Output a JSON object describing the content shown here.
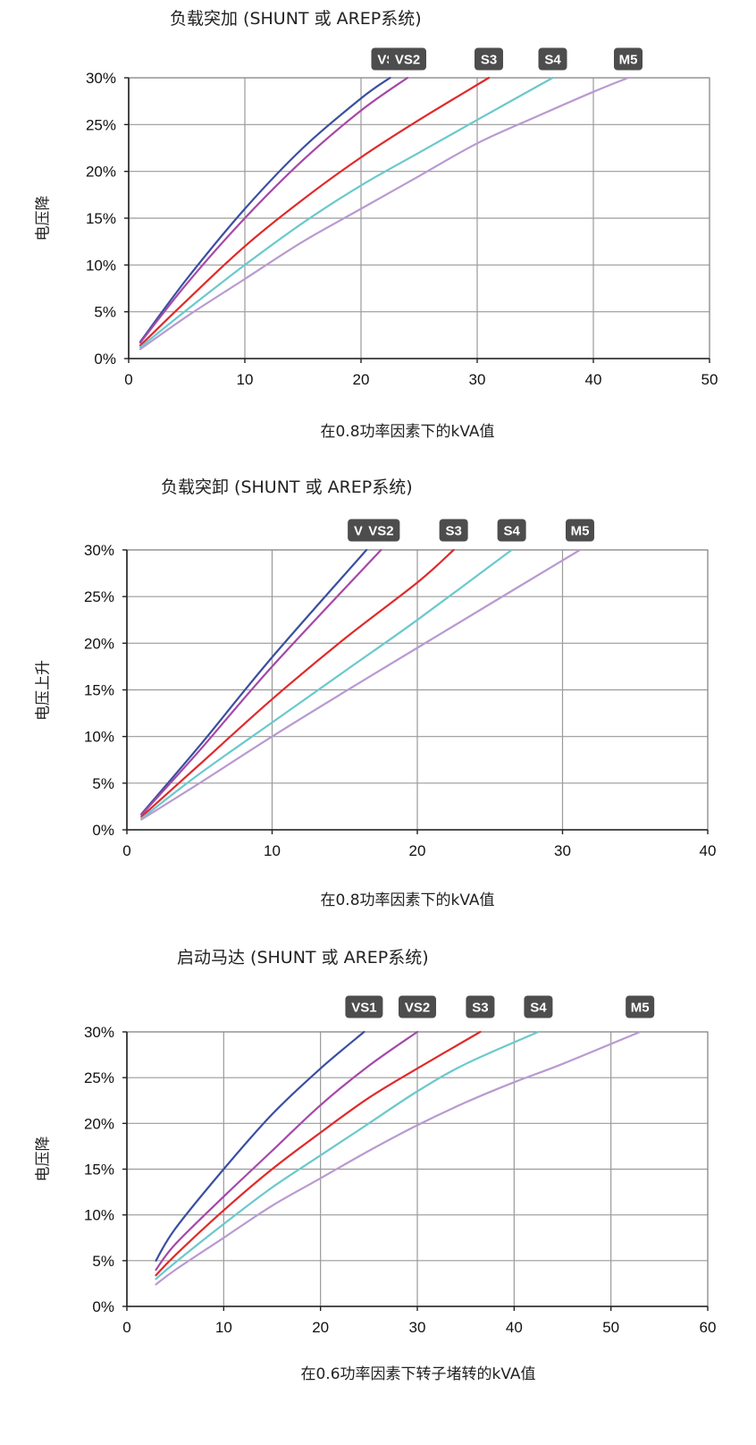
{
  "chart_data": [
    {
      "type": "line",
      "title": "负载突加 (SHUNT 或 AREP系统)",
      "xlabel": "在0.8功率因素下的kVA值",
      "ylabel": "电压降",
      "xlim": [
        0,
        50
      ],
      "ylim": [
        0,
        30
      ],
      "xticks": [
        "0",
        "10",
        "20",
        "30",
        "40",
        "50"
      ],
      "yticks": [
        "0%",
        "5%",
        "10%",
        "15%",
        "20%",
        "25%",
        "30%"
      ],
      "grid": true,
      "series": [
        {
          "name": "VS1",
          "color": "#3a4fa0",
          "x": [
            1,
            5,
            10,
            15,
            20,
            22.5
          ],
          "y": [
            1.8,
            8.5,
            16.0,
            22.5,
            27.8,
            30
          ]
        },
        {
          "name": "VS2",
          "color": "#a648a8",
          "x": [
            1,
            5,
            10,
            15,
            20,
            24
          ],
          "y": [
            1.7,
            8.0,
            15.0,
            21.2,
            26.5,
            30
          ]
        },
        {
          "name": "S3",
          "color": "#e02a2a",
          "x": [
            1,
            5,
            10,
            15,
            20,
            25,
            31
          ],
          "y": [
            1.4,
            6.2,
            12.0,
            17.0,
            21.5,
            25.5,
            30
          ]
        },
        {
          "name": "S4",
          "color": "#6ac9cc",
          "x": [
            1,
            5,
            10,
            15,
            20,
            25,
            30,
            36.5
          ],
          "y": [
            1.2,
            5.2,
            10.0,
            14.5,
            18.5,
            22.0,
            25.5,
            30
          ]
        },
        {
          "name": "M5",
          "color": "#b99ad0",
          "x": [
            1,
            5,
            10,
            15,
            20,
            25,
            30,
            35,
            40,
            43
          ],
          "y": [
            1.0,
            4.5,
            8.5,
            12.5,
            16.0,
            19.5,
            23.0,
            25.8,
            28.5,
            30
          ]
        }
      ],
      "tags": [
        "VS1",
        "VS2",
        "S3",
        "S4",
        "M5"
      ]
    },
    {
      "type": "line",
      "title": "负载突卸 (SHUNT 或 AREP系统)",
      "xlabel": "在0.8功率因素下的kVA值",
      "ylabel": "电压上升",
      "xlim": [
        0,
        40
      ],
      "ylim": [
        0,
        30
      ],
      "xticks": [
        "0",
        "10",
        "20",
        "30",
        "40"
      ],
      "yticks": [
        "0%",
        "5%",
        "10%",
        "15%",
        "20%",
        "25%",
        "30%"
      ],
      "grid": true,
      "series": [
        {
          "name": "VS1",
          "color": "#3a4fa0",
          "x": [
            1,
            5,
            10,
            16.5
          ],
          "y": [
            1.7,
            9.0,
            18.5,
            30
          ]
        },
        {
          "name": "VS2",
          "color": "#a648a8",
          "x": [
            1,
            5,
            10,
            17.5
          ],
          "y": [
            1.6,
            8.5,
            17.5,
            30
          ]
        },
        {
          "name": "S3",
          "color": "#e02a2a",
          "x": [
            1,
            5,
            10,
            15,
            20,
            22.5
          ],
          "y": [
            1.4,
            7.0,
            14.0,
            20.5,
            26.5,
            30
          ]
        },
        {
          "name": "S4",
          "color": "#6ac9cc",
          "x": [
            1,
            5,
            10,
            15,
            20,
            26.5
          ],
          "y": [
            1.2,
            6.0,
            11.5,
            17.0,
            22.5,
            30
          ]
        },
        {
          "name": "M5",
          "color": "#b99ad0",
          "x": [
            1,
            5,
            10,
            15,
            20,
            25,
            31.2
          ],
          "y": [
            1.1,
            5.0,
            10.0,
            14.8,
            19.5,
            24.2,
            30
          ]
        }
      ],
      "tags": [
        "VS1",
        "VS2",
        "S3",
        "S4",
        "M5"
      ]
    },
    {
      "type": "line",
      "title": "启动马达 (SHUNT 或 AREP系统)",
      "xlabel": "在0.6功率因素下转子堵转的kVA值",
      "ylabel": "电压降",
      "xlim": [
        0,
        60
      ],
      "ylim": [
        0,
        30
      ],
      "xticks": [
        "0",
        "10",
        "20",
        "30",
        "40",
        "50",
        "60"
      ],
      "yticks": [
        "0%",
        "5%",
        "10%",
        "15%",
        "20%",
        "25%",
        "30%"
      ],
      "grid": true,
      "series": [
        {
          "name": "VS1",
          "color": "#3a4fa0",
          "x": [
            3,
            5,
            10,
            15,
            20,
            24.5
          ],
          "y": [
            5.0,
            8.5,
            15.0,
            21.0,
            26.0,
            30
          ]
        },
        {
          "name": "VS2",
          "color": "#a648a8",
          "x": [
            3,
            5,
            10,
            15,
            20,
            25,
            30
          ],
          "y": [
            4.0,
            6.8,
            12.0,
            17.0,
            22.0,
            26.3,
            30
          ]
        },
        {
          "name": "S3",
          "color": "#e02a2a",
          "x": [
            3,
            5,
            10,
            15,
            20,
            25,
            30,
            36.5
          ],
          "y": [
            3.4,
            5.6,
            10.5,
            15.0,
            19.0,
            22.8,
            26.0,
            30
          ]
        },
        {
          "name": "S4",
          "color": "#6ac9cc",
          "x": [
            3,
            5,
            10,
            15,
            20,
            25,
            30,
            35,
            42.5
          ],
          "y": [
            3.0,
            4.8,
            9.0,
            13.0,
            16.5,
            20.0,
            23.5,
            26.5,
            30
          ]
        },
        {
          "name": "M5",
          "color": "#b99ad0",
          "x": [
            3,
            5,
            10,
            15,
            20,
            25,
            30,
            35,
            40,
            45,
            53
          ],
          "y": [
            2.4,
            4.0,
            7.5,
            11.0,
            14.0,
            17.0,
            19.8,
            22.3,
            24.5,
            26.5,
            30
          ]
        }
      ],
      "tags": [
        "VS1",
        "VS2",
        "S3",
        "S4",
        "M5"
      ]
    }
  ]
}
